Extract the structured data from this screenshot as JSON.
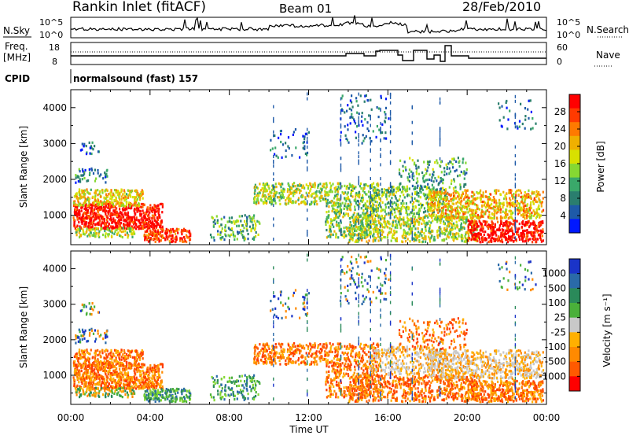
{
  "header": {
    "station": "Rankin Inlet (fitACF)",
    "beam": "Beam 01",
    "date": "28/Feb/2010"
  },
  "status_panel": {
    "nsky_label": "N.Sky",
    "nsky_ticks": [
      "10^5",
      "10^0"
    ],
    "nsearch_label": "N.Search",
    "nsearch_ticks": [
      "10^5",
      "10^0"
    ],
    "freq_label_line1": "Freq.",
    "freq_label_line2": "[MHz]",
    "freq_ticks": [
      "18",
      "8"
    ],
    "nave_label": "Nave",
    "nave_ticks": [
      "60",
      "0"
    ],
    "cpid_label": "CPID",
    "cpid_text": "normalsound (fast) 157"
  },
  "power_colorbar": {
    "label": "Power [dB]",
    "ticks": [
      "28",
      "24",
      "20",
      "16",
      "12",
      "8",
      "4"
    ],
    "colors": [
      "#ff0000",
      "#ff3a00",
      "#ff7a00",
      "#f0b000",
      "#d8e000",
      "#86d832",
      "#3aa86a",
      "#2a7e6e",
      "#1e5aa8",
      "#0018ff"
    ]
  },
  "velocity_colorbar": {
    "label": "Velocity [m s⁻¹]",
    "ticks": [
      "1000",
      "500",
      "100",
      "25",
      "-25",
      "-100",
      "-500",
      "-1000"
    ],
    "colors": [
      "#1a34c8",
      "#2a6aa8",
      "#2a8a5a",
      "#4ab03a",
      "#c8c8c8",
      "#ffb000",
      "#ff8a00",
      "#ff5a00",
      "#ff0000"
    ]
  },
  "chart_data": {
    "type": "heatmap",
    "title": "Rankin Inlet (fitACF)",
    "xlabel": "Time UT",
    "ylabel": "Slant Range [km]",
    "x_ticks": [
      "00:00",
      "04:00",
      "08:00",
      "12:00",
      "16:00",
      "20:00",
      "00:00"
    ],
    "y_ticks": [
      "1000",
      "2000",
      "3000",
      "4000"
    ],
    "xlim_hours": [
      0,
      24
    ],
    "ylim_km": [
      180,
      4500
    ],
    "series": [
      {
        "name": "Power [dB]",
        "clim": [
          0,
          30
        ]
      },
      {
        "name": "Velocity [m s⁻¹]",
        "clim": [
          -1000,
          1000
        ]
      }
    ]
  }
}
